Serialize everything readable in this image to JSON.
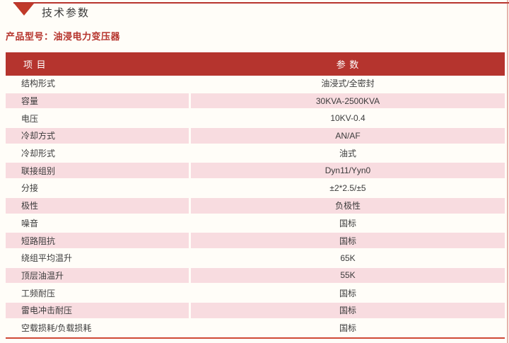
{
  "section": {
    "title": "技术参数"
  },
  "product_line": {
    "text": "产品型号：油浸电力变压器"
  },
  "table": {
    "headers": {
      "item": "项 目",
      "param": "参 数"
    },
    "rows": [
      {
        "item": "结构形式",
        "param": "油浸式/全密封"
      },
      {
        "item": "容量",
        "param": "30KVA-2500KVA"
      },
      {
        "item": "电压",
        "param": "10KV-0.4"
      },
      {
        "item": "冷却方式",
        "param": "AN/AF"
      },
      {
        "item": "冷却形式",
        "param": "油式"
      },
      {
        "item": "联接组别",
        "param": "Dyn11/Yyn0"
      },
      {
        "item": "分接",
        "param": "±2*2.5/±5"
      },
      {
        "item": "极性",
        "param": "负极性"
      },
      {
        "item": "噪音",
        "param": "国标"
      },
      {
        "item": "短路阻抗",
        "param": "国标"
      },
      {
        "item": "绕组平均温升",
        "param": "65K"
      },
      {
        "item": "顶层油温升",
        "param": "55K"
      },
      {
        "item": "工频耐压",
        "param": "国标"
      },
      {
        "item": "雷电冲击耐压",
        "param": "国标"
      },
      {
        "item": "空载损耗/负载损耗",
        "param": "国标"
      }
    ]
  },
  "colors": {
    "header_red": "#b5342e",
    "accent_red": "#c03a2a",
    "row_pink": "#f8dce0",
    "bottom_rule_red": "#cf4936",
    "text_dark": "#3b3b3b",
    "background": "#fffdf8"
  }
}
